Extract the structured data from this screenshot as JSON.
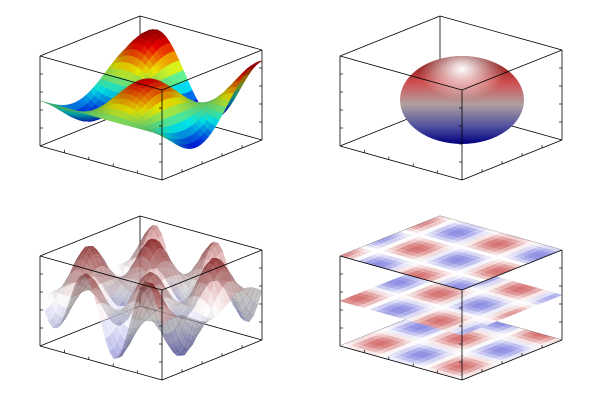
{
  "chart_data": {
    "type": "surface",
    "grid": false,
    "panels": [
      {
        "kind": "surf",
        "colormap": [
          "#00007f",
          "#0000ff",
          "#00ffff",
          "#ffff00",
          "#ff0000",
          "#7f0000"
        ]
      },
      {
        "kind": "sphere",
        "colormap": [
          "#00007f",
          "#ffffff",
          "#7f0000"
        ]
      },
      {
        "kind": "surf-transparent",
        "colormap": [
          "#3030c0",
          "#ffffff",
          "#a01010"
        ]
      },
      {
        "kind": "dens-slices",
        "slices": 3,
        "colormap": [
          "#8080e0",
          "#ffffff",
          "#d06060"
        ]
      }
    ]
  }
}
